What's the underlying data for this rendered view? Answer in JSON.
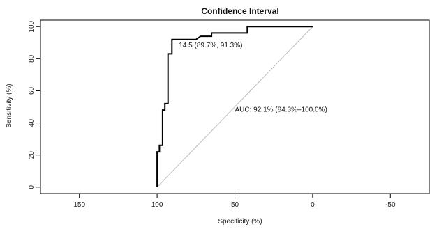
{
  "chart_data": {
    "type": "line",
    "title": "Confidence Interval",
    "xlabel": "Specificity (%)",
    "ylabel": "Sensitivity (%)",
    "xlim": [
      175,
      -75
    ],
    "ylim": [
      -4,
      104
    ],
    "x_ticks": [
      150,
      100,
      50,
      0,
      -50
    ],
    "x_tick_labels": [
      "150",
      "100",
      "50",
      "0",
      "-50"
    ],
    "y_ticks": [
      0,
      20,
      40,
      60,
      80,
      100
    ],
    "y_tick_labels": [
      "0",
      "20",
      "40",
      "60",
      "80",
      "100"
    ],
    "grid": false,
    "series": [
      {
        "x": [
          100,
          100,
          98.5,
          98.5,
          96.5,
          96.5,
          95,
          95,
          93,
          93,
          90.5,
          90.5,
          75,
          72,
          65,
          65,
          42,
          42,
          0
        ],
        "y": [
          0,
          22,
          22,
          26,
          26,
          48,
          48,
          52,
          52,
          83,
          83,
          92,
          92,
          94,
          94,
          96,
          96,
          100,
          100
        ]
      }
    ],
    "reference_line": {
      "x": [
        100,
        0
      ],
      "y": [
        0,
        100
      ]
    },
    "annotations": [
      {
        "text": "14.5 (89.7%, 91.3%)",
        "x": 86,
        "y": 87
      },
      {
        "text": "AUC: 92.1% (84.3%–100.0%)",
        "x": 50,
        "y": 47
      }
    ]
  }
}
